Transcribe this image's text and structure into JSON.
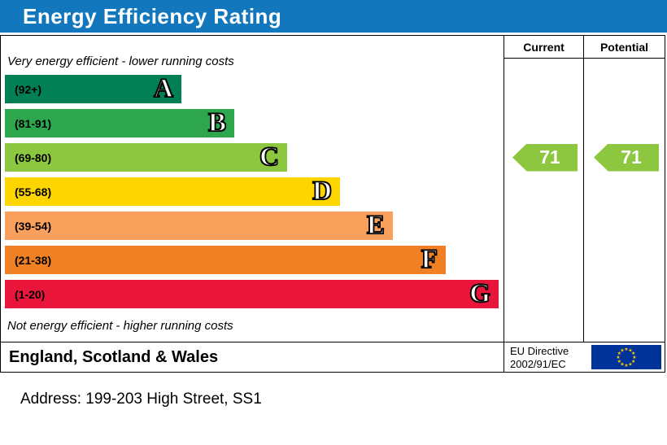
{
  "header": {
    "title": "Energy Efficiency Rating",
    "bar_color": "#1377bd"
  },
  "columns": {
    "current_label": "Current",
    "potential_label": "Potential"
  },
  "chart_data": {
    "type": "bar",
    "title": "Energy Efficiency Rating",
    "top_note": "Very energy efficient - lower running costs",
    "bottom_note": "Not energy efficient - higher running costs",
    "bands": [
      {
        "letter": "A",
        "range": "(92+)",
        "color": "#008054",
        "width_pct": 35.4
      },
      {
        "letter": "B",
        "range": "(81-91)",
        "color": "#2ea64d",
        "width_pct": 46.0
      },
      {
        "letter": "C",
        "range": "(69-80)",
        "color": "#8dc63f",
        "width_pct": 56.6
      },
      {
        "letter": "D",
        "range": "(55-68)",
        "color": "#ffd500",
        "width_pct": 67.2
      },
      {
        "letter": "E",
        "range": "(39-54)",
        "color": "#f9a05c",
        "width_pct": 77.8
      },
      {
        "letter": "F",
        "range": "(21-38)",
        "color": "#ef8023",
        "width_pct": 88.4
      },
      {
        "letter": "G",
        "range": "(1-20)",
        "color": "#e9153b",
        "width_pct": 99.0
      }
    ],
    "current": {
      "value": 71,
      "band_index": 2,
      "color": "#8dc63f"
    },
    "potential": {
      "value": 71,
      "band_index": 2,
      "color": "#8dc63f"
    }
  },
  "footer": {
    "region": "England, Scotland & Wales",
    "directive_line1": "EU Directive",
    "directive_line2": "2002/91/EC"
  },
  "address_line": "Address: 199-203 High Street, SS1"
}
